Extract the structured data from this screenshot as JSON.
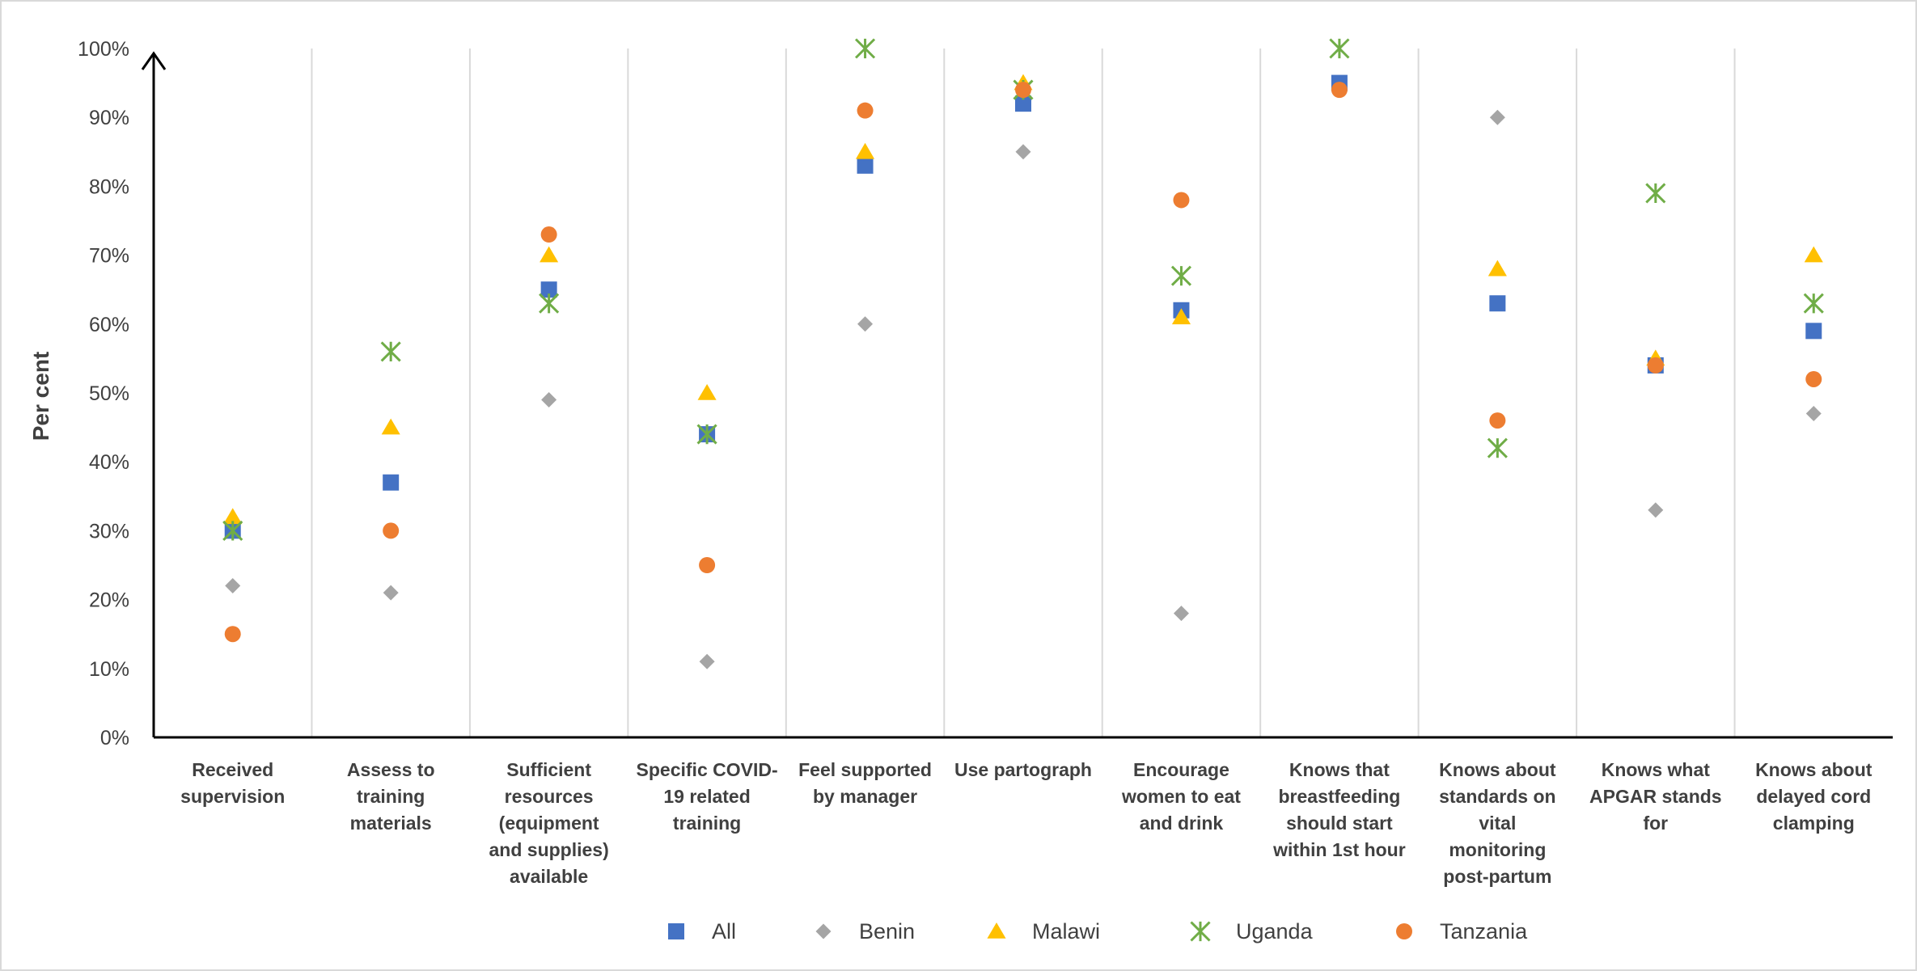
{
  "chart_data": {
    "type": "scatter",
    "ylabel": "Per cent",
    "ylim": [
      0,
      100
    ],
    "yticks": [
      "0%",
      "10%",
      "20%",
      "30%",
      "40%",
      "50%",
      "60%",
      "70%",
      "80%",
      "90%",
      "100%"
    ],
    "categories": [
      [
        "Received",
        "supervision"
      ],
      [
        "Assess to",
        "training",
        "materials"
      ],
      [
        "Sufficient",
        "resources",
        "(equipment",
        "and supplies)",
        "available"
      ],
      [
        "Specific COVID-",
        "19 related",
        "training"
      ],
      [
        "Feel supported",
        "by manager"
      ],
      [
        "Use partograph"
      ],
      [
        "Encourage",
        "women to  eat",
        "and drink"
      ],
      [
        "Knows that",
        "breastfeeding",
        "should start",
        "within 1st hour"
      ],
      [
        "Knows about",
        "standards on",
        "vital",
        "monitoring",
        "post-partum"
      ],
      [
        "Knows what",
        "APGAR stands",
        "for"
      ],
      [
        "Knows about",
        "delayed cord",
        "clamping"
      ]
    ],
    "series": [
      {
        "name": "All",
        "marker": "square",
        "color": "#4472c4",
        "values": [
          30,
          37,
          65,
          44,
          83,
          92,
          62,
          95,
          63,
          54,
          59
        ]
      },
      {
        "name": "Benin",
        "marker": "diamond",
        "color": "#a5a5a5",
        "values": [
          22,
          21,
          49,
          11,
          60,
          85,
          18,
          null,
          90,
          33,
          47
        ]
      },
      {
        "name": "Malawi",
        "marker": "triangle",
        "color": "#ffc000",
        "values": [
          32,
          45,
          70,
          50,
          85,
          95,
          61,
          null,
          68,
          55,
          70
        ]
      },
      {
        "name": "Uganda",
        "marker": "star",
        "color": "#70ad47",
        "values": [
          30,
          56,
          63,
          44,
          100,
          94,
          67,
          100,
          42,
          null,
          63
        ]
      },
      {
        "name": "Tanzania",
        "marker": "circle",
        "color": "#ed7d31",
        "values": [
          15,
          30,
          73,
          25,
          91,
          94,
          null,
          94,
          46,
          54,
          52
        ]
      }
    ],
    "extra_points": [
      {
        "series": "Uganda",
        "category_index": 9,
        "value": 79
      },
      {
        "series": "Tanzania",
        "category_index": 6,
        "value": 78
      }
    ],
    "legend_position": "bottom",
    "grid": "vertical category separators"
  }
}
